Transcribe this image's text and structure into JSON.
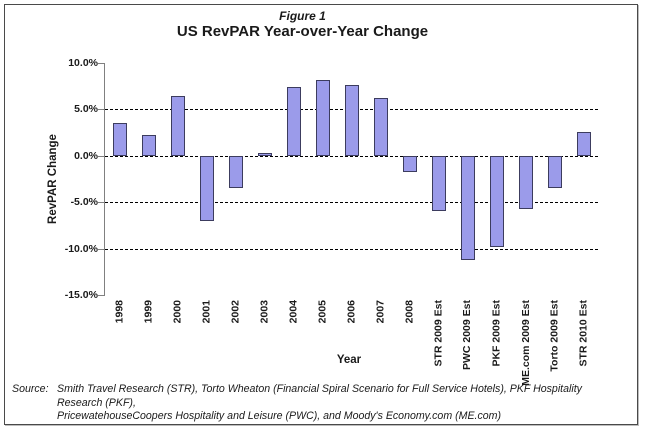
{
  "figure": {
    "label": "Figure 1",
    "title": "US RevPAR Year-over-Year Change"
  },
  "chart_data": {
    "type": "bar",
    "title": "US RevPAR Year-over-Year Change",
    "categories": [
      "1998",
      "1999",
      "2000",
      "2001",
      "2002",
      "2003",
      "2004",
      "2005",
      "2006",
      "2007",
      "2008",
      "STR 2009 Est",
      "PWC 2009 Est",
      "PKF 2009 Est",
      "ME.com 2009 Est",
      "Torto 2009 Est",
      "STR 2010 Est"
    ],
    "values": [
      3.5,
      2.2,
      6.5,
      -7.0,
      -3.5,
      0.3,
      7.4,
      8.2,
      7.6,
      6.2,
      -1.8,
      -5.9,
      -11.2,
      -9.8,
      -5.7,
      -3.5,
      2.6
    ],
    "xlabel": "Year",
    "ylabel": "RevPAR Change",
    "ylim": [
      -15,
      10
    ],
    "y_ticks": [
      10,
      5,
      0,
      -5,
      -10,
      -15
    ],
    "y_tick_labels": [
      "10.0%",
      "5.0%",
      "0.0%",
      "-5.0%",
      "-10.0%",
      "-15.0%"
    ],
    "gridlines": [
      5,
      0,
      -5,
      -10
    ],
    "grid_style": "dashed",
    "legend": "none",
    "bar_unit": "percent"
  },
  "source": {
    "label": "Source:",
    "lines": [
      "Smith Travel Research (STR), Torto Wheaton (Financial Spiral Scenario for Full Service Hotels), PKF Hospitality Research (PKF),",
      "PricewatehouseCoopers Hospitality and Leisure (PWC), and Moody's Economy.com (ME.com)"
    ]
  },
  "colors": {
    "bar_fill": "#9b9bea",
    "bar_border": "#3c3c5e",
    "gridline": "#000000",
    "axis": "#808080",
    "frame_border": "#4a4a4a",
    "text": "#1a1a1a"
  }
}
